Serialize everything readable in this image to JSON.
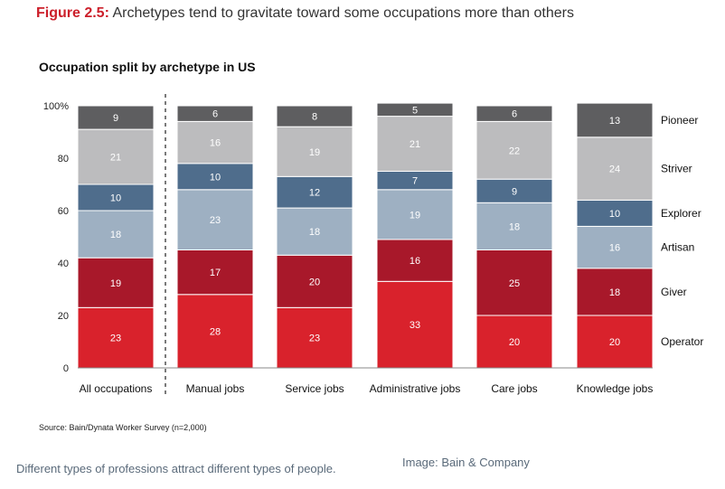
{
  "figure": {
    "label": "Figure 2.5:",
    "title": "Archetypes tend to gravitate toward some occupations more than others"
  },
  "source": "Source: Bain/Dynata Worker Survey (n=2,000)",
  "caption": "Different types of professions attract different types of people.",
  "credit": "Image: Bain & Company",
  "chart_data": {
    "type": "bar",
    "stacked": true,
    "title": "Occupation split by archetype in US",
    "xlabel": "",
    "ylabel": "",
    "ylim": [
      0,
      100
    ],
    "y_ticks": [
      "0",
      "20",
      "40",
      "60",
      "80",
      "100%"
    ],
    "legend_position": "right",
    "categories": [
      "All occupations",
      "Manual jobs",
      "Service jobs",
      "Administrative jobs",
      "Care jobs",
      "Knowledge jobs"
    ],
    "series": [
      {
        "name": "Operator",
        "color": "#d9222c",
        "values": [
          23,
          28,
          23,
          33,
          20,
          20
        ]
      },
      {
        "name": "Giver",
        "color": "#a8182a",
        "values": [
          19,
          17,
          20,
          16,
          25,
          18
        ]
      },
      {
        "name": "Artisan",
        "color": "#9eb0c2",
        "values": [
          18,
          23,
          18,
          19,
          18,
          16
        ]
      },
      {
        "name": "Explorer",
        "color": "#4f6d8c",
        "values": [
          10,
          10,
          12,
          7,
          9,
          10
        ]
      },
      {
        "name": "Striver",
        "color": "#bcbcbe",
        "values": [
          21,
          16,
          19,
          21,
          22,
          24
        ]
      },
      {
        "name": "Pioneer",
        "color": "#5e5e60",
        "values": [
          9,
          6,
          8,
          5,
          6,
          13
        ]
      }
    ]
  }
}
